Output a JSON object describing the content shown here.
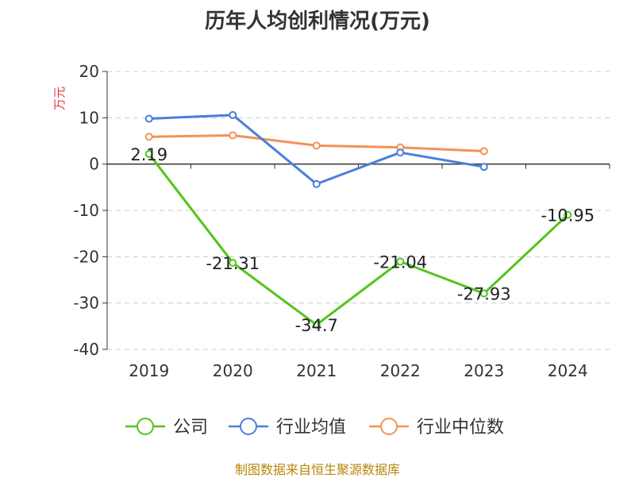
{
  "chart_data": {
    "type": "line",
    "title": "历年人均创利情况(万元)",
    "ylabel": "万元",
    "categories": [
      "2019",
      "2020",
      "2021",
      "2022",
      "2023",
      "2024"
    ],
    "ylim": [
      -40,
      20
    ],
    "yticks": [
      20,
      10,
      0,
      -10,
      -20,
      -30,
      -40
    ],
    "grid": true,
    "legend_position": "bottom",
    "series": [
      {
        "name": "公司",
        "color": "#52c41a",
        "values": [
          2.19,
          -21.31,
          -34.7,
          -21.04,
          -27.93,
          -10.95
        ],
        "labels": [
          "2.19",
          "-21.31",
          "-34.7",
          "-21.04",
          "-27.93",
          "-10.95"
        ]
      },
      {
        "name": "行业均值",
        "color": "#4a7fdb",
        "values": [
          9.8,
          10.6,
          -4.3,
          2.5,
          -0.6,
          null
        ]
      },
      {
        "name": "行业中位数",
        "color": "#f39257",
        "values": [
          5.9,
          6.2,
          4.0,
          3.6,
          2.8,
          null
        ]
      }
    ]
  },
  "source": "制图数据来自恒生聚源数据库"
}
